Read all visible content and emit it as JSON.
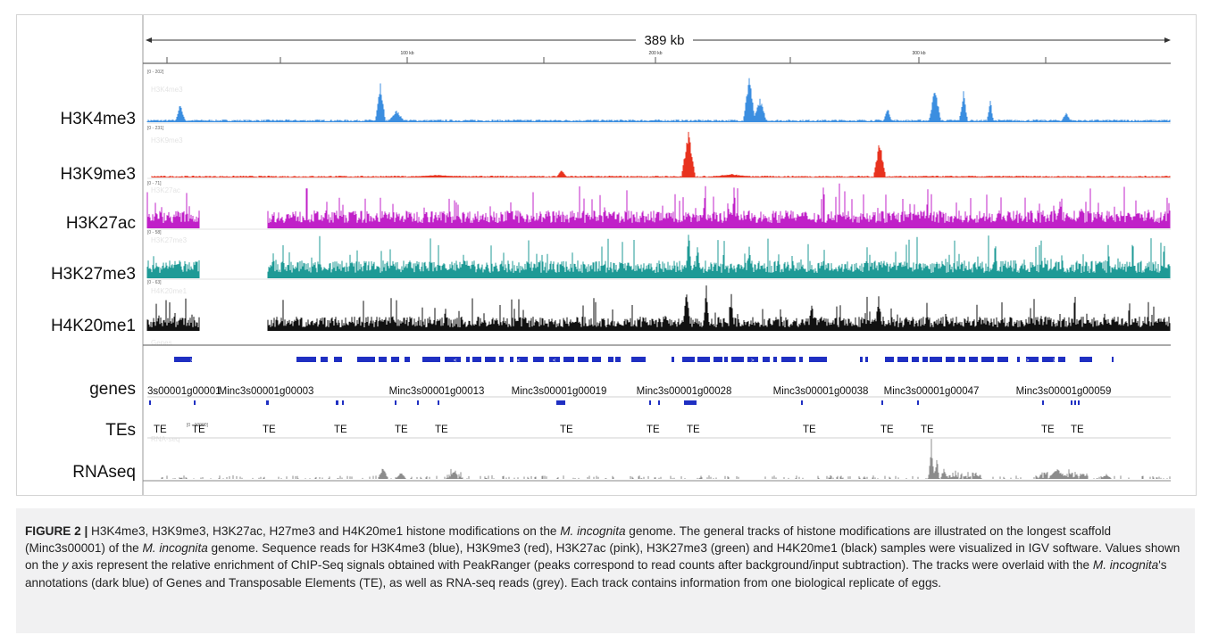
{
  "ruler": {
    "total": "389 kb",
    "ticks": [
      "100 kb",
      "200 kb",
      "300 kb"
    ]
  },
  "tracks": [
    {
      "label": "H3K4me3",
      "range": "[0 - 202]",
      "ghost": "H3K4me3",
      "color": "#3b8ee0"
    },
    {
      "label": "H3K9me3",
      "range": "[0 - 231]",
      "ghost": "H3K9me3",
      "color": "#e8321e"
    },
    {
      "label": "H3K27ac",
      "range": "[0 - 71]",
      "ghost": "H3K27ac",
      "color": "#c020c8"
    },
    {
      "label": "H3K27me3",
      "range": "[0 - 58]",
      "ghost": "H3K27me3",
      "color": "#1e9a96"
    },
    {
      "label": "H4K20me1",
      "range": "[0 - 63]",
      "ghost": "H4K20me1",
      "color": "#111111"
    }
  ],
  "genes": {
    "label": "genes",
    "ghost": "Genes",
    "color": "#1f2fc2",
    "names": [
      "3s00001g00001",
      "Minc3s00001g00003",
      "Minc3s00001g00013",
      "Minc3s00001g00019",
      "Minc3s00001g00028",
      "Minc3s00001g00038",
      "Minc3s00001g00047",
      "Minc3s00001g00059"
    ]
  },
  "tes": {
    "label": "TEs",
    "ghost": "TE",
    "items": [
      "TE",
      "TE",
      "TE",
      "TE",
      "TE",
      "TE",
      "TE",
      "TE",
      "TE",
      "TE",
      "TE",
      "TE",
      "TE",
      "TE"
    ]
  },
  "rnaseq": {
    "label": "RNAseq",
    "range": "[0 - 10000]",
    "ghost": "RNA-seq",
    "color": "#8c8c8c"
  },
  "caption": {
    "figure_label": "FIGURE 2 |",
    "t1": " H3K4me3, H3K9me3, H3K27ac, H27me3 and H4K20me1 histone modifications on the ",
    "sp1": "M. incognita",
    "t2": " genome. The general tracks of histone modifications are illustrated on the longest scaffold (Minc3s00001) of the ",
    "sp2": "M. incognita",
    "t3": " genome. Sequence reads for H3K4me3 (blue), H3K9me3 (red), H3K27ac (pink), H3K27me3 (green) and H4K20me1 (black) samples were visualized in IGV software. Values shown on the ",
    "y": "y",
    "t4": " axis represent the relative enrichment of ChIP-Seq signals obtained with PeakRanger (peaks correspond to read counts after background/input subtraction). The tracks were overlaid with the ",
    "sp3": "M. incognita",
    "t5": "'s annotations (dark blue) of Genes and Transposable Elements (TE), as well as RNA-seq reads (grey). Each track contains information from one biological replicate of eggs."
  }
}
